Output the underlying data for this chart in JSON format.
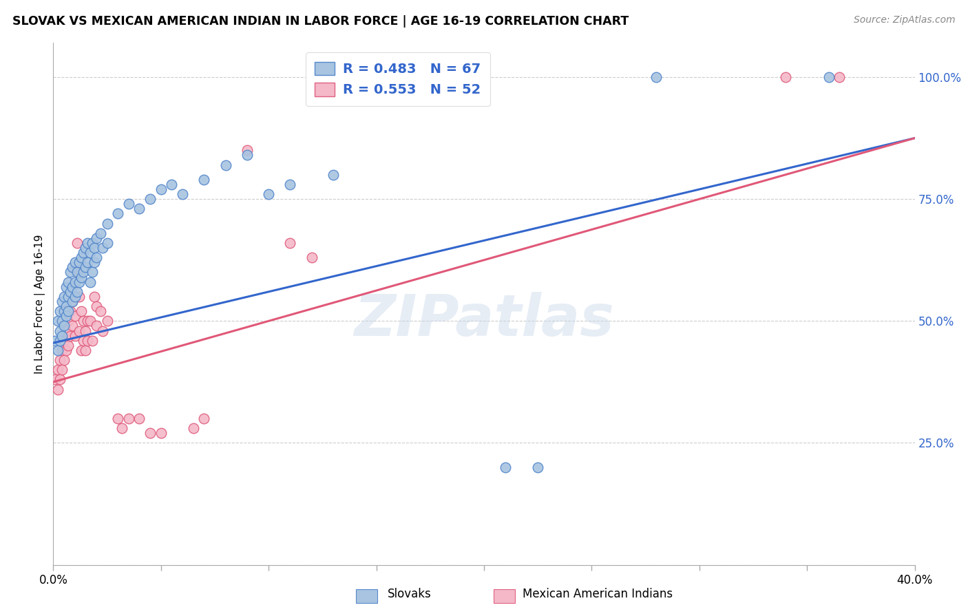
{
  "title": "SLOVAK VS MEXICAN AMERICAN INDIAN IN LABOR FORCE | AGE 16-19 CORRELATION CHART",
  "source": "Source: ZipAtlas.com",
  "ylabel": "In Labor Force | Age 16-19",
  "yticks": [
    0.0,
    0.25,
    0.5,
    0.75,
    1.0
  ],
  "ytick_labels": [
    "",
    "25.0%",
    "50.0%",
    "75.0%",
    "100.0%"
  ],
  "xticks": [
    0.0,
    0.05,
    0.1,
    0.15,
    0.2,
    0.25,
    0.3,
    0.35,
    0.4
  ],
  "legend_blue_r": "R = 0.483",
  "legend_blue_n": "N = 67",
  "legend_pink_r": "R = 0.553",
  "legend_pink_n": "N = 52",
  "blue_color": "#a8c4e0",
  "pink_color": "#f4b8c8",
  "blue_edge_color": "#5588cc",
  "pink_edge_color": "#e06080",
  "blue_line_color": "#3366cc",
  "pink_line_color": "#e05878",
  "watermark": "ZIPatlas",
  "blue_scatter": [
    [
      0.001,
      0.46
    ],
    [
      0.002,
      0.44
    ],
    [
      0.002,
      0.5
    ],
    [
      0.003,
      0.48
    ],
    [
      0.003,
      0.52
    ],
    [
      0.003,
      0.46
    ],
    [
      0.004,
      0.5
    ],
    [
      0.004,
      0.54
    ],
    [
      0.004,
      0.47
    ],
    [
      0.005,
      0.52
    ],
    [
      0.005,
      0.55
    ],
    [
      0.005,
      0.49
    ],
    [
      0.006,
      0.53
    ],
    [
      0.006,
      0.57
    ],
    [
      0.006,
      0.51
    ],
    [
      0.007,
      0.55
    ],
    [
      0.007,
      0.58
    ],
    [
      0.007,
      0.52
    ],
    [
      0.008,
      0.56
    ],
    [
      0.008,
      0.6
    ],
    [
      0.009,
      0.57
    ],
    [
      0.009,
      0.61
    ],
    [
      0.009,
      0.54
    ],
    [
      0.01,
      0.58
    ],
    [
      0.01,
      0.62
    ],
    [
      0.01,
      0.55
    ],
    [
      0.011,
      0.6
    ],
    [
      0.011,
      0.56
    ],
    [
      0.012,
      0.62
    ],
    [
      0.012,
      0.58
    ],
    [
      0.013,
      0.63
    ],
    [
      0.013,
      0.59
    ],
    [
      0.014,
      0.64
    ],
    [
      0.014,
      0.6
    ],
    [
      0.015,
      0.65
    ],
    [
      0.015,
      0.61
    ],
    [
      0.016,
      0.66
    ],
    [
      0.016,
      0.62
    ],
    [
      0.017,
      0.64
    ],
    [
      0.017,
      0.58
    ],
    [
      0.018,
      0.66
    ],
    [
      0.018,
      0.6
    ],
    [
      0.019,
      0.65
    ],
    [
      0.019,
      0.62
    ],
    [
      0.02,
      0.67
    ],
    [
      0.02,
      0.63
    ],
    [
      0.022,
      0.68
    ],
    [
      0.023,
      0.65
    ],
    [
      0.025,
      0.7
    ],
    [
      0.025,
      0.66
    ],
    [
      0.03,
      0.72
    ],
    [
      0.035,
      0.74
    ],
    [
      0.04,
      0.73
    ],
    [
      0.045,
      0.75
    ],
    [
      0.05,
      0.77
    ],
    [
      0.055,
      0.78
    ],
    [
      0.06,
      0.76
    ],
    [
      0.07,
      0.79
    ],
    [
      0.08,
      0.82
    ],
    [
      0.09,
      0.84
    ],
    [
      0.1,
      0.76
    ],
    [
      0.11,
      0.78
    ],
    [
      0.13,
      0.8
    ],
    [
      0.21,
      0.2
    ],
    [
      0.225,
      0.2
    ],
    [
      0.28,
      1.0
    ],
    [
      0.36,
      1.0
    ]
  ],
  "pink_scatter": [
    [
      0.001,
      0.38
    ],
    [
      0.002,
      0.4
    ],
    [
      0.002,
      0.36
    ],
    [
      0.003,
      0.42
    ],
    [
      0.003,
      0.38
    ],
    [
      0.004,
      0.4
    ],
    [
      0.004,
      0.44
    ],
    [
      0.005,
      0.42
    ],
    [
      0.005,
      0.46
    ],
    [
      0.006,
      0.44
    ],
    [
      0.006,
      0.48
    ],
    [
      0.007,
      0.45
    ],
    [
      0.007,
      0.5
    ],
    [
      0.008,
      0.47
    ],
    [
      0.008,
      0.52
    ],
    [
      0.009,
      0.49
    ],
    [
      0.009,
      0.54
    ],
    [
      0.01,
      0.51
    ],
    [
      0.01,
      0.47
    ],
    [
      0.011,
      0.6
    ],
    [
      0.011,
      0.66
    ],
    [
      0.012,
      0.55
    ],
    [
      0.012,
      0.48
    ],
    [
      0.013,
      0.52
    ],
    [
      0.013,
      0.44
    ],
    [
      0.014,
      0.5
    ],
    [
      0.014,
      0.46
    ],
    [
      0.015,
      0.48
    ],
    [
      0.015,
      0.44
    ],
    [
      0.016,
      0.5
    ],
    [
      0.016,
      0.46
    ],
    [
      0.017,
      0.5
    ],
    [
      0.018,
      0.46
    ],
    [
      0.019,
      0.55
    ],
    [
      0.02,
      0.53
    ],
    [
      0.02,
      0.49
    ],
    [
      0.022,
      0.52
    ],
    [
      0.023,
      0.48
    ],
    [
      0.025,
      0.5
    ],
    [
      0.03,
      0.3
    ],
    [
      0.032,
      0.28
    ],
    [
      0.035,
      0.3
    ],
    [
      0.04,
      0.3
    ],
    [
      0.045,
      0.27
    ],
    [
      0.05,
      0.27
    ],
    [
      0.065,
      0.28
    ],
    [
      0.07,
      0.3
    ],
    [
      0.09,
      0.85
    ],
    [
      0.11,
      0.66
    ],
    [
      0.12,
      0.63
    ],
    [
      0.34,
      1.0
    ],
    [
      0.365,
      1.0
    ]
  ],
  "blue_line_x": [
    0.0,
    0.4
  ],
  "blue_line_y": [
    0.455,
    0.875
  ],
  "pink_line_x": [
    0.0,
    0.4
  ],
  "pink_line_y": [
    0.375,
    0.875
  ],
  "xmin": 0.0,
  "xmax": 0.4,
  "ymin": 0.06,
  "ymax": 1.07
}
